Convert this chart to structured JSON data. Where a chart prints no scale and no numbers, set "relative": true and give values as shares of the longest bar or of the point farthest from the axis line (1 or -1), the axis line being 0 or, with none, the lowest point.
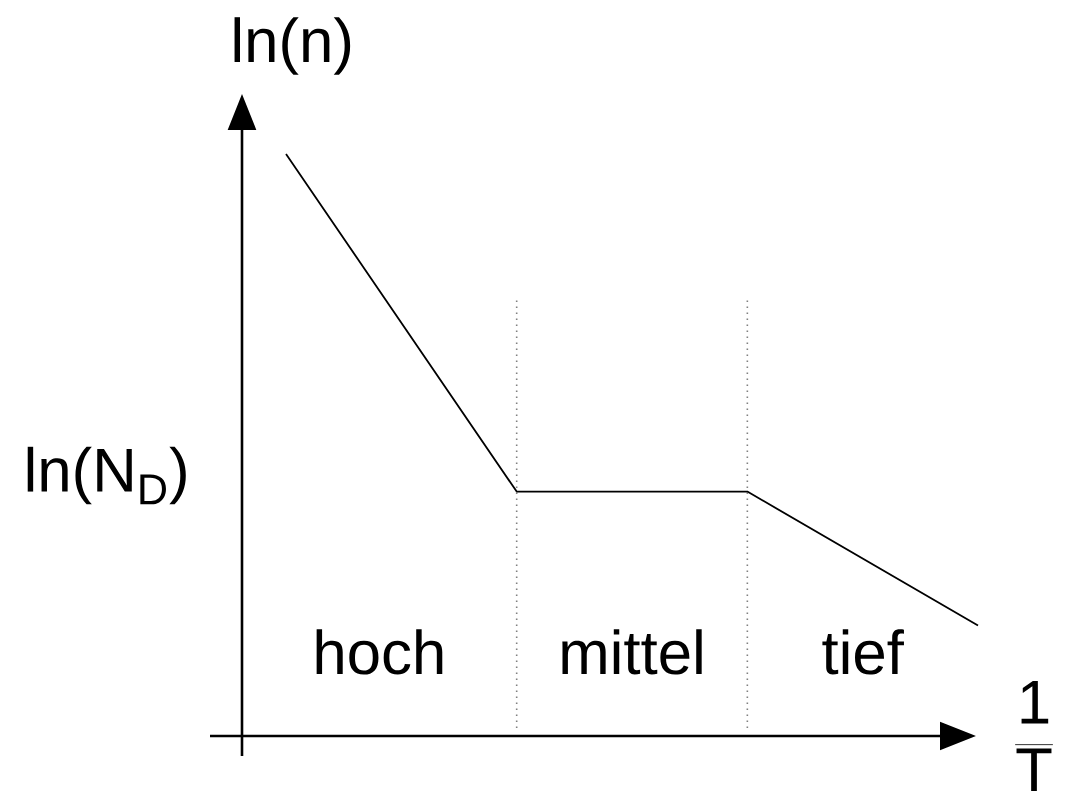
{
  "chart_data": {
    "type": "line",
    "relative": true,
    "xlabel": "\\frac{\\mathrm{1}}{\\mathrm{T}}",
    "ylabel": "ln(n)",
    "categories": [
      null,
      null,
      null,
      null
    ],
    "values": [
      1,
      0.42,
      0.42,
      0.19
    ],
    "color": "#000000",
    "annotations": [
      "ln(N$_{D}$)",
      "hoch",
      "mittel",
      "tief"
    ]
  }
}
